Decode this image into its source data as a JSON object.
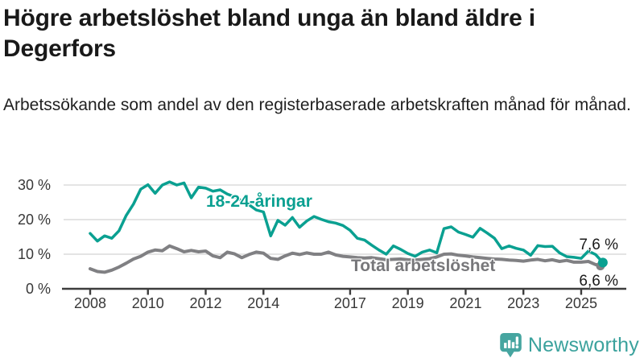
{
  "header": {
    "title_lines": [
      "Högre arbetslöshet bland unga än bland äldre i Degerfors"
    ],
    "subtitle": "Arbetssökande som andel av den registerbaserade arbetskraften månad för månad."
  },
  "footer": {
    "brand": "Newsworthy"
  },
  "colors": {
    "youth_line": "#0aa091",
    "total_line": "#808083",
    "grid": "#dcdcdc",
    "axis": "#3d3d3d",
    "tick_text": "#383838",
    "title_text": "#191919",
    "brand_teal": "#46a5a0"
  },
  "chart_data": {
    "type": "line",
    "title": "Högre arbetslöshet bland unga än bland äldre i Degerfors",
    "subtitle": "Arbetssökande som andel av den registerbaserade arbetskraften månad för månad.",
    "xlabel": "",
    "ylabel": "",
    "unit": "%",
    "grid": "horizontal",
    "legend_position": "inline-labels",
    "xlim": [
      2007.1,
      2026.5
    ],
    "ylim": [
      0,
      30
    ],
    "x_tick_values": [
      2008,
      2010,
      2012,
      2014,
      2017,
      2019,
      2021,
      2023,
      2025
    ],
    "x_tick_labels": [
      "2008",
      "2010",
      "2012",
      "2014",
      "2017",
      "2019",
      "2021",
      "2023",
      "2025"
    ],
    "y_tick_values": [
      0,
      10,
      20,
      30
    ],
    "y_tick_labels": [
      "0 %",
      "10 %",
      "20 %",
      "30 %"
    ],
    "x_start": 2008.0,
    "x_step": 0.25,
    "series": [
      {
        "name": "18-24-åringar",
        "color": "#0aa091",
        "end_label": "7,6 %",
        "end_value": 7.6,
        "values": [
          16.0,
          13.8,
          15.3,
          14.6,
          16.8,
          21.2,
          24.5,
          28.8,
          30.1,
          27.6,
          30.0,
          30.9,
          30.0,
          30.6,
          26.3,
          29.4,
          29.1,
          28.2,
          28.6,
          27.4,
          26.6,
          25.4,
          24.3,
          22.8,
          22.2,
          15.3,
          19.8,
          18.4,
          20.6,
          17.8,
          19.6,
          20.9,
          20.1,
          19.4,
          19.0,
          18.3,
          16.9,
          14.6,
          14.1,
          12.6,
          11.2,
          10.0,
          12.4,
          11.4,
          10.2,
          9.4,
          10.6,
          11.2,
          10.4,
          17.4,
          17.9,
          16.4,
          15.7,
          14.9,
          17.5,
          16.1,
          14.6,
          11.6,
          12.4,
          11.7,
          11.2,
          9.7,
          12.5,
          12.2,
          12.3,
          10.4,
          9.3,
          9.1,
          8.8,
          10.9,
          9.9,
          7.6
        ]
      },
      {
        "name": "Total arbetslöshet",
        "color": "#808083",
        "end_label": "6,6 %",
        "end_value": 6.6,
        "values": [
          5.8,
          5.0,
          4.8,
          5.4,
          6.3,
          7.4,
          8.6,
          9.4,
          10.6,
          11.2,
          11.0,
          12.4,
          11.6,
          10.7,
          11.1,
          10.7,
          10.9,
          9.5,
          9.0,
          10.6,
          10.1,
          9.0,
          9.9,
          10.6,
          10.3,
          8.8,
          8.5,
          9.5,
          10.3,
          9.9,
          10.4,
          10.0,
          10.0,
          10.6,
          9.8,
          9.4,
          9.2,
          9.0,
          8.9,
          9.0,
          8.7,
          8.4,
          8.5,
          8.6,
          8.4,
          8.3,
          8.5,
          8.7,
          9.2,
          10.0,
          10.1,
          9.7,
          9.5,
          9.2,
          9.0,
          8.8,
          8.6,
          8.5,
          8.3,
          8.2,
          8.0,
          8.3,
          8.5,
          8.1,
          8.4,
          7.9,
          8.2,
          7.7,
          7.7,
          7.9,
          7.0,
          6.6
        ]
      }
    ]
  }
}
